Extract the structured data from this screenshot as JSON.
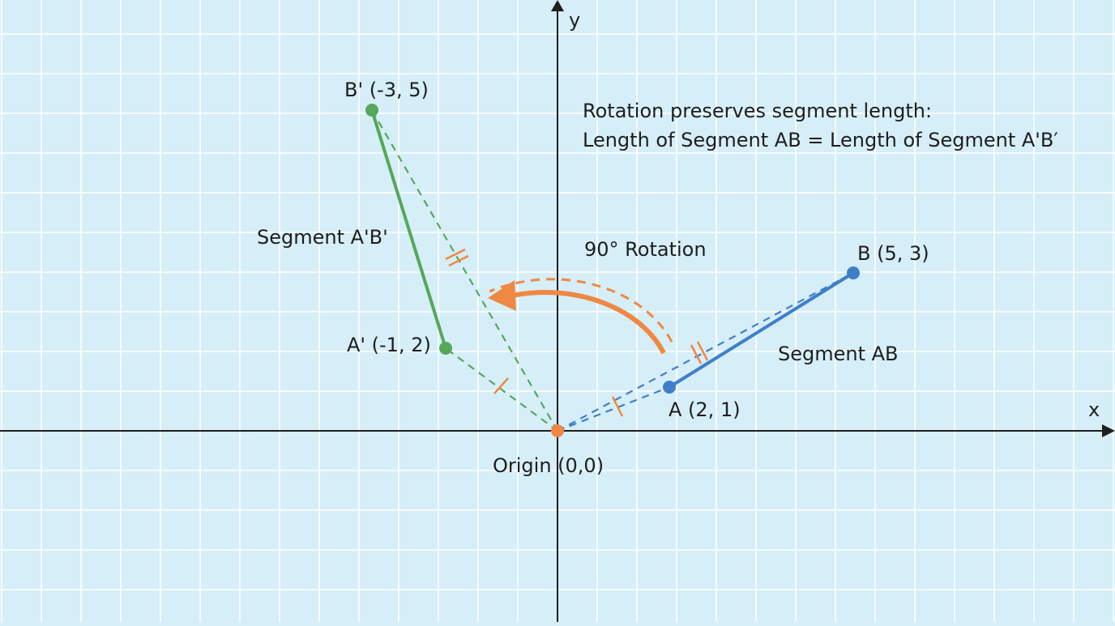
{
  "colors": {
    "background": "#d6eef8",
    "grid": "#ffffff",
    "axis": "#1e1e1e",
    "original_segment": "#3f7fc9",
    "image_segment": "#55a85a",
    "rotation": "#ef8842",
    "text": "#1e1e1e"
  },
  "axes": {
    "x_label": "x",
    "y_label": "y"
  },
  "origin": {
    "label": "Origin (0,0)",
    "point": [
      0,
      0
    ]
  },
  "points": {
    "A": {
      "label": "A (2, 1)",
      "coords": [
        2,
        1
      ]
    },
    "B": {
      "label": "B (5, 3)",
      "coords": [
        5,
        3
      ]
    },
    "A_prime": {
      "label": "A' (-1, 2)",
      "coords": [
        -1,
        2
      ]
    },
    "B_prime": {
      "label": "B' (-3, 5)",
      "coords": [
        -3,
        5
      ]
    }
  },
  "segments": {
    "original_label": "Segment AB",
    "image_label": "Segment A'B'"
  },
  "rotation": {
    "label": "90° Rotation",
    "angle_degrees": 90
  },
  "note": {
    "line1": "Rotation preserves segment length:",
    "line2": "Length of Segment AB = Length of Segment A'B′"
  }
}
